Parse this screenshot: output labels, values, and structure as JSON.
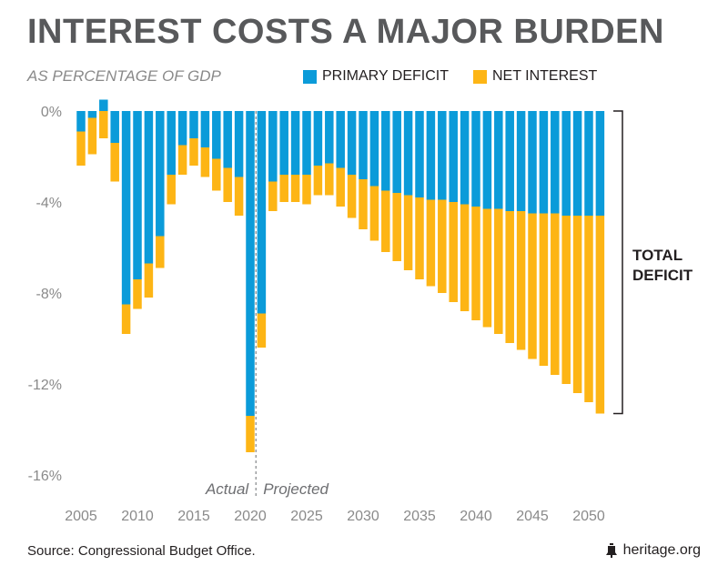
{
  "title": "INTEREST COSTS A MAJOR BURDEN",
  "subtitle": "AS PERCENTAGE OF GDP",
  "legend": {
    "primary_label": "PRIMARY DEFICIT",
    "interest_label": "NET INTEREST"
  },
  "colors": {
    "primary": "#0b9bd9",
    "interest": "#fdb515",
    "title": "#58595b"
  },
  "total_label_line1": "TOTAL",
  "total_label_line2": "DEFICIT",
  "actual_label": "Actual",
  "projected_label": "Projected",
  "source": "Source: Congressional Budget Office.",
  "brand": "heritage.org",
  "brand_icon": "liberty-bell-icon",
  "chart_data": {
    "type": "bar",
    "stacked": true,
    "ylim": [
      -16,
      0
    ],
    "yticks": [
      0,
      -4,
      -8,
      -12,
      -16
    ],
    "ytick_labels": [
      "0%",
      "-4%",
      "-8%",
      "-12%",
      "-16%"
    ],
    "xtick_labels": [
      "2005",
      "2010",
      "2015",
      "2020",
      "2025",
      "2030",
      "2035",
      "2040",
      "2045",
      "2050"
    ],
    "xticks": [
      2005,
      2010,
      2015,
      2020,
      2025,
      2030,
      2035,
      2040,
      2045,
      2050
    ],
    "actual_projected_divider": 2020.5,
    "categories": [
      2005,
      2006,
      2007,
      2008,
      2009,
      2010,
      2011,
      2012,
      2013,
      2014,
      2015,
      2016,
      2017,
      2018,
      2019,
      2020,
      2021,
      2022,
      2023,
      2024,
      2025,
      2026,
      2027,
      2028,
      2029,
      2030,
      2031,
      2032,
      2033,
      2034,
      2035,
      2036,
      2037,
      2038,
      2039,
      2040,
      2041,
      2042,
      2043,
      2044,
      2045,
      2046,
      2047,
      2048,
      2049,
      2050,
      2051
    ],
    "series": [
      {
        "name": "PRIMARY DEFICIT",
        "values": [
          -0.9,
          -0.3,
          0.5,
          -1.4,
          -8.5,
          -7.4,
          -6.7,
          -5.5,
          -2.8,
          -1.5,
          -1.2,
          -1.6,
          -2.1,
          -2.5,
          -2.9,
          -13.4,
          -8.9,
          -3.1,
          -2.8,
          -2.8,
          -2.8,
          -2.4,
          -2.3,
          -2.5,
          -2.8,
          -3.0,
          -3.3,
          -3.5,
          -3.6,
          -3.7,
          -3.8,
          -3.9,
          -3.9,
          -4.0,
          -4.1,
          -4.2,
          -4.3,
          -4.3,
          -4.4,
          -4.4,
          -4.5,
          -4.5,
          -4.5,
          -4.6,
          -4.6,
          -4.6,
          -4.6
        ]
      },
      {
        "name": "NET INTEREST",
        "values": [
          -1.5,
          -1.6,
          -1.2,
          -1.7,
          -1.3,
          -1.3,
          -1.5,
          -1.4,
          -1.3,
          -1.3,
          -1.2,
          -1.3,
          -1.4,
          -1.5,
          -1.7,
          -1.6,
          -1.5,
          -1.3,
          -1.2,
          -1.2,
          -1.3,
          -1.3,
          -1.4,
          -1.7,
          -1.9,
          -2.2,
          -2.4,
          -2.7,
          -3.0,
          -3.3,
          -3.6,
          -3.8,
          -4.1,
          -4.4,
          -4.7,
          -5.0,
          -5.2,
          -5.5,
          -5.8,
          -6.1,
          -6.4,
          -6.7,
          -7.1,
          -7.4,
          -7.8,
          -8.2,
          -8.7
        ]
      }
    ]
  }
}
